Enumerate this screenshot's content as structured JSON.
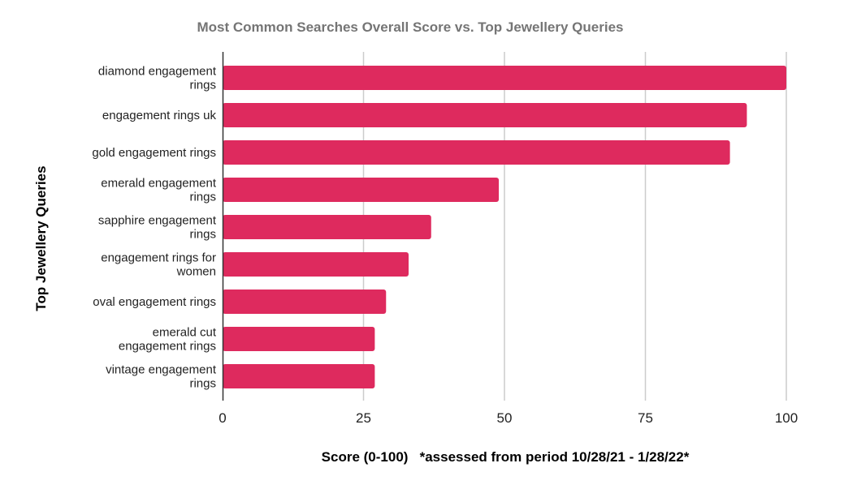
{
  "chart_data": {
    "type": "bar",
    "orientation": "horizontal",
    "title": "Most Common Searches Overall Score vs. Top Jewellery Queries",
    "xlabel": "Score (0-100)   *assessed from period 10/28/21 - 1/28/22*",
    "ylabel": "Top Jewellery Queries",
    "xlim": [
      0,
      100
    ],
    "xticks": [
      0,
      25,
      50,
      75,
      100
    ],
    "grid": true,
    "legend": "none",
    "bar_color": "#de2a5e",
    "categories": [
      [
        "diamond engagement",
        "rings"
      ],
      [
        "engagement rings uk"
      ],
      [
        "gold engagement rings"
      ],
      [
        "emerald engagement",
        "rings"
      ],
      [
        "sapphire engagement",
        "rings"
      ],
      [
        "engagement rings for",
        "women"
      ],
      [
        "oval engagement rings"
      ],
      [
        "emerald cut",
        "engagement rings"
      ],
      [
        "vintage engagement",
        "rings"
      ]
    ],
    "values": [
      100,
      93,
      90,
      49,
      37,
      33,
      29,
      27,
      27
    ]
  }
}
